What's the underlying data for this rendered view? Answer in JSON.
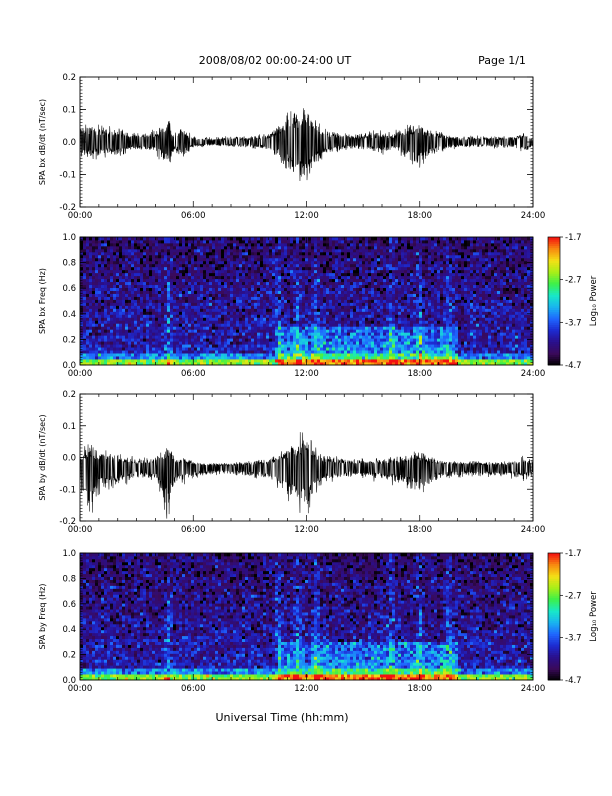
{
  "header": {
    "title": "2008/08/02  00:00-24:00 UT",
    "page_label": "Page 1/1"
  },
  "x_axis_title": "Universal Time (hh:mm)",
  "time_ticks": [
    "00:00",
    "06:00",
    "12:00",
    "18:00",
    "24:00"
  ],
  "colors": {
    "colormap": [
      "#000000",
      "#3a0a5a",
      "#2a0f8c",
      "#1d2ad0",
      "#1f66ff",
      "#19b4f0",
      "#18e8c8",
      "#3cf04a",
      "#a8ef18",
      "#f4e016",
      "#f88a10",
      "#f41010"
    ]
  },
  "chart_data": [
    {
      "type": "line",
      "ylabel": "SPA bx dB/dt (nT/sec)",
      "xlim_hours": [
        0,
        24
      ],
      "ylim": [
        -0.2,
        0.2
      ],
      "yticks": [
        "0.2",
        "0.1",
        "0.0",
        "-0.1",
        "-0.2"
      ],
      "ytick_values": [
        0.2,
        0.1,
        0.0,
        -0.1,
        -0.2
      ],
      "baseline": 0.0,
      "envelope": {
        "hours": [
          0,
          1,
          2,
          3,
          4,
          4.7,
          5,
          5.4,
          6,
          7,
          8,
          9,
          10,
          10.5,
          11,
          11.5,
          12,
          12.5,
          13,
          14,
          15,
          16,
          16.5,
          17,
          18,
          18.5,
          19,
          20,
          21,
          22,
          23,
          23.5,
          24
        ],
        "upper": [
          0.06,
          0.06,
          0.05,
          0.03,
          0.04,
          0.09,
          0.03,
          0.06,
          0.02,
          0.015,
          0.02,
          0.02,
          0.03,
          0.06,
          0.1,
          0.12,
          0.15,
          0.09,
          0.05,
          0.03,
          0.03,
          0.04,
          0.03,
          0.05,
          0.07,
          0.05,
          0.04,
          0.02,
          0.02,
          0.02,
          0.02,
          0.04,
          0.02
        ],
        "lower": [
          -0.06,
          -0.06,
          -0.05,
          -0.03,
          -0.04,
          -0.1,
          -0.03,
          -0.06,
          -0.02,
          -0.015,
          -0.02,
          -0.02,
          -0.03,
          -0.06,
          -0.11,
          -0.14,
          -0.16,
          -0.09,
          -0.05,
          -0.03,
          -0.03,
          -0.04,
          -0.03,
          -0.05,
          -0.09,
          -0.05,
          -0.04,
          -0.02,
          -0.02,
          -0.02,
          -0.02,
          -0.04,
          -0.02
        ]
      }
    },
    {
      "type": "heatmap",
      "ylabel": "SPA bx Freq (Hz)",
      "xlim_hours": [
        0,
        24
      ],
      "ylim": [
        0.0,
        1.0
      ],
      "yticks": [
        "1.0",
        "0.8",
        "0.6",
        "0.4",
        "0.2",
        "0.0"
      ],
      "ytick_values": [
        1.0,
        0.8,
        0.6,
        0.4,
        0.2,
        0.0
      ],
      "colorbar": {
        "label": "Log₁₀ Power",
        "range": [
          -4.7,
          -1.7
        ],
        "ticks": [
          "-1.7",
          "-2.7",
          "-3.7",
          "-4.7"
        ],
        "tick_values": [
          -1.7,
          -2.7,
          -3.7,
          -4.7
        ]
      },
      "features": {
        "background_log_power": -4.0,
        "low_freq_band": {
          "freq_max": 0.05,
          "log_power": -2.6
        },
        "active_hours": [
          4.7,
          10.5,
          11.5,
          12.5,
          16.5,
          18.0,
          19.5
        ],
        "enhanced_region": {
          "hours": [
            10.5,
            20.0
          ],
          "freq_max": 0.3,
          "log_power": -3.3
        }
      }
    },
    {
      "type": "line",
      "ylabel": "SPA by dB/dt (nT/sec)",
      "xlim_hours": [
        0,
        24
      ],
      "ylim": [
        -0.2,
        0.2
      ],
      "yticks": [
        "0.2",
        "0.1",
        "0.0",
        "-0.1",
        "-0.2"
      ],
      "ytick_values": [
        0.2,
        0.1,
        0.0,
        -0.1,
        -0.2
      ],
      "baseline": -0.03,
      "envelope": {
        "hours": [
          0,
          0.5,
          1,
          2,
          3,
          4,
          4.7,
          5,
          5.4,
          6,
          7,
          8,
          9,
          10,
          10.5,
          11,
          11.5,
          12,
          12.5,
          13,
          14,
          15,
          16,
          17,
          18,
          18.5,
          19,
          20,
          21,
          22,
          23,
          23.5,
          24
        ],
        "upper": [
          0.05,
          0.09,
          0.06,
          0.05,
          0.03,
          0.04,
          0.09,
          0.03,
          0.04,
          0.02,
          0.015,
          0.015,
          0.02,
          0.03,
          0.05,
          0.08,
          0.1,
          0.13,
          0.07,
          0.04,
          0.03,
          0.03,
          0.03,
          0.04,
          0.06,
          0.04,
          0.03,
          0.02,
          0.02,
          0.02,
          0.02,
          0.04,
          0.02
        ],
        "lower": [
          -0.08,
          -0.2,
          -0.1,
          -0.07,
          -0.04,
          -0.05,
          -0.2,
          -0.06,
          -0.06,
          -0.04,
          -0.03,
          -0.03,
          -0.04,
          -0.05,
          -0.08,
          -0.13,
          -0.16,
          -0.18,
          -0.1,
          -0.06,
          -0.04,
          -0.04,
          -0.05,
          -0.07,
          -0.11,
          -0.07,
          -0.05,
          -0.04,
          -0.04,
          -0.04,
          -0.04,
          -0.05,
          -0.04
        ]
      }
    },
    {
      "type": "heatmap",
      "ylabel": "SPA by Freq (Hz)",
      "xlim_hours": [
        0,
        24
      ],
      "ylim": [
        0.0,
        1.0
      ],
      "yticks": [
        "1.0",
        "0.8",
        "0.6",
        "0.4",
        "0.2",
        "0.0"
      ],
      "ytick_values": [
        1.0,
        0.8,
        0.6,
        0.4,
        0.2,
        0.0
      ],
      "colorbar": {
        "label": "Log₁₀ Power",
        "range": [
          -4.7,
          -1.7
        ],
        "ticks": [
          "-1.7",
          "-2.7",
          "-3.7",
          "-4.7"
        ],
        "tick_values": [
          -1.7,
          -2.7,
          -3.7,
          -4.7
        ]
      },
      "features": {
        "background_log_power": -4.0,
        "low_freq_band": {
          "freq_max": 0.05,
          "log_power": -2.6
        },
        "active_hours": [
          4.7,
          10.5,
          11.5,
          12.5,
          16.5,
          18.0,
          19.5
        ],
        "enhanced_region": {
          "hours": [
            10.5,
            20.0
          ],
          "freq_max": 0.3,
          "log_power": -3.3
        }
      }
    }
  ]
}
